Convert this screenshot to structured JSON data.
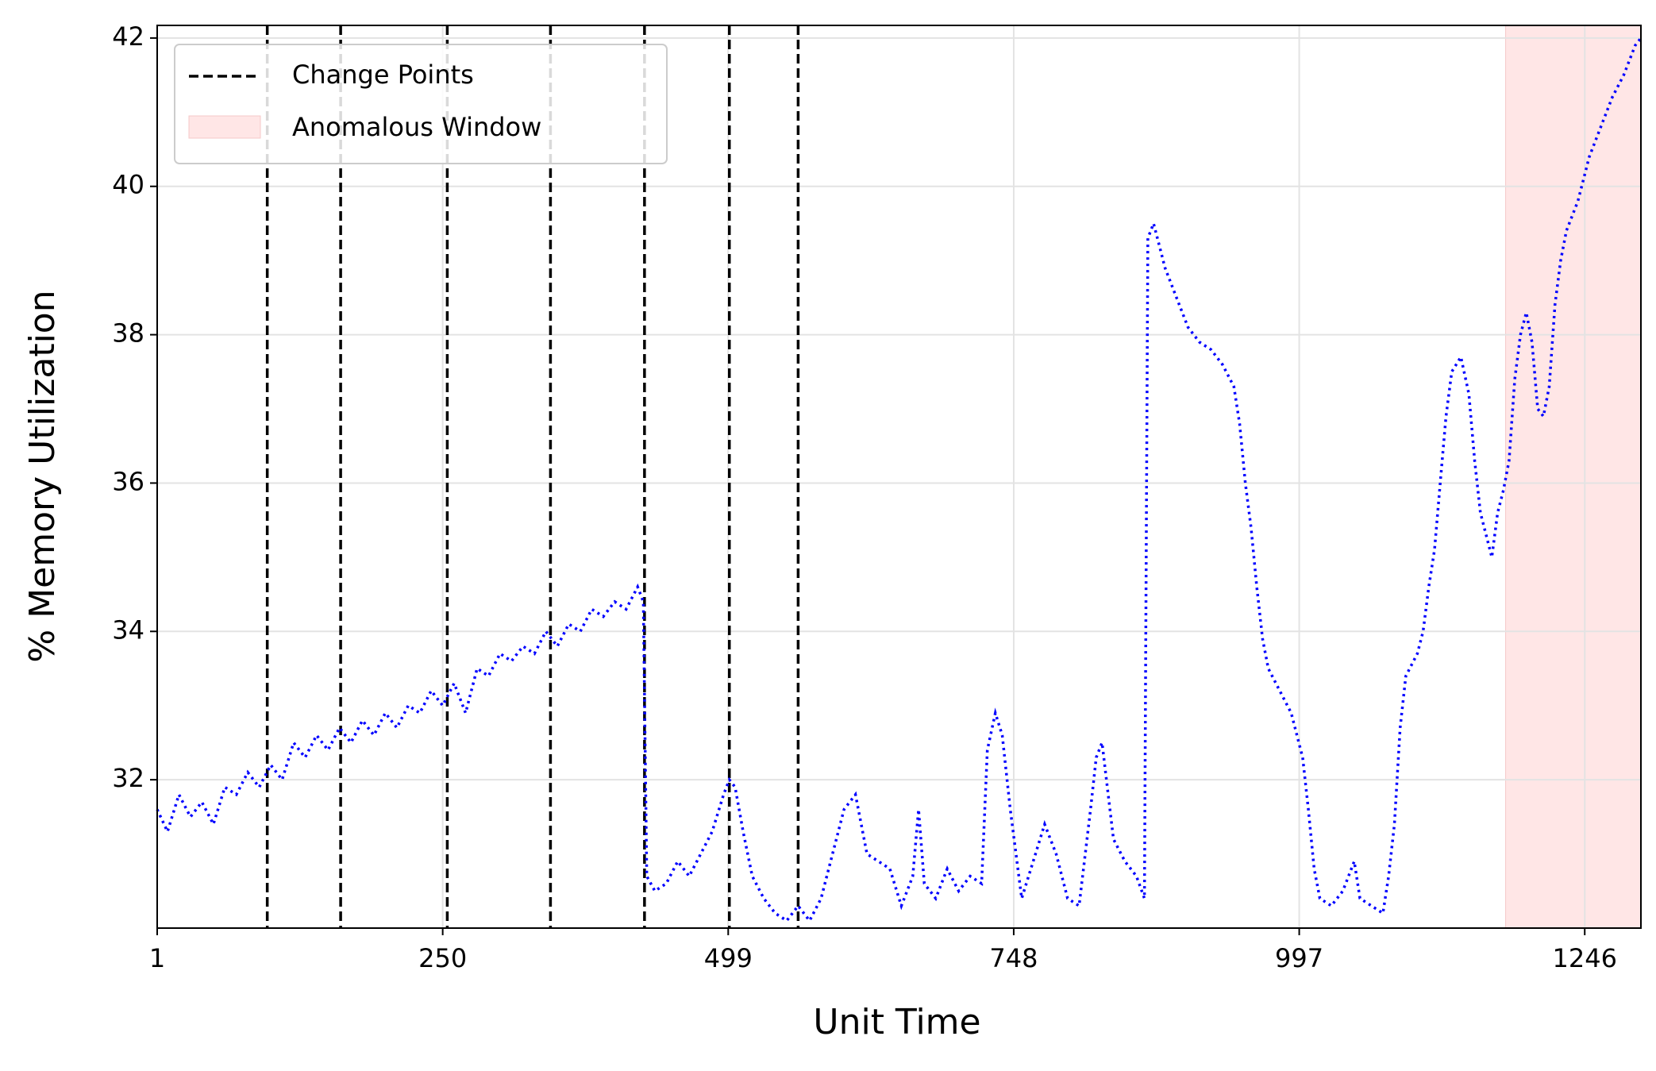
{
  "chart_data": {
    "type": "line",
    "xlabel": "Unit Time",
    "ylabel": "% Memory Utilization",
    "xlim": [
      1,
      1295
    ],
    "ylim": [
      30.0,
      42.17
    ],
    "xticks": [
      1,
      250,
      499,
      748,
      997,
      1246
    ],
    "yticks": [
      32,
      34,
      36,
      38,
      40,
      42
    ],
    "grid": true,
    "legend": "upper left",
    "x": [
      1,
      10,
      20,
      30,
      40,
      50,
      60,
      70,
      80,
      90,
      100,
      110,
      120,
      130,
      140,
      150,
      160,
      170,
      180,
      190,
      200,
      210,
      220,
      230,
      240,
      250,
      260,
      270,
      280,
      290,
      300,
      310,
      320,
      330,
      340,
      350,
      360,
      370,
      380,
      390,
      400,
      410,
      420,
      425,
      428,
      435,
      445,
      455,
      465,
      475,
      485,
      495,
      500,
      505,
      512,
      520,
      530,
      540,
      550,
      560,
      570,
      580,
      590,
      600,
      610,
      620,
      630,
      640,
      650,
      660,
      665,
      670,
      680,
      690,
      700,
      710,
      720,
      725,
      732,
      738,
      745,
      755,
      765,
      775,
      785,
      795,
      805,
      815,
      820,
      825,
      835,
      845,
      855,
      862,
      865,
      870,
      875,
      880,
      890,
      900,
      910,
      920,
      930,
      940,
      945,
      950,
      955,
      960,
      965,
      970,
      980,
      990,
      1000,
      1005,
      1010,
      1015,
      1025,
      1035,
      1045,
      1050,
      1060,
      1070,
      1075,
      1080,
      1085,
      1090,
      1100,
      1105,
      1110,
      1115,
      1120,
      1125,
      1130,
      1138,
      1145,
      1150,
      1155,
      1160,
      1165,
      1170,
      1175,
      1180,
      1185,
      1190,
      1195,
      1200,
      1205,
      1210,
      1215,
      1220,
      1225,
      1230,
      1240,
      1250,
      1260,
      1270,
      1280,
      1290,
      1295
    ],
    "series": [
      {
        "color": "#0000ff",
        "values": [
          31.6,
          31.3,
          31.8,
          31.5,
          31.7,
          31.4,
          31.9,
          31.8,
          32.1,
          31.9,
          32.2,
          32.0,
          32.5,
          32.3,
          32.6,
          32.4,
          32.7,
          32.5,
          32.8,
          32.6,
          32.9,
          32.7,
          33.0,
          32.9,
          33.2,
          33.0,
          33.3,
          32.9,
          33.5,
          33.4,
          33.7,
          33.6,
          33.8,
          33.7,
          34.0,
          33.8,
          34.1,
          34.0,
          34.3,
          34.2,
          34.4,
          34.3,
          34.6,
          34.4,
          30.7,
          30.5,
          30.6,
          30.9,
          30.7,
          31.0,
          31.3,
          31.8,
          32.0,
          31.9,
          31.3,
          30.7,
          30.4,
          30.2,
          30.1,
          30.3,
          30.1,
          30.4,
          31.0,
          31.6,
          31.8,
          31.0,
          30.9,
          30.8,
          30.3,
          30.7,
          31.6,
          30.6,
          30.4,
          30.8,
          30.5,
          30.7,
          30.6,
          32.4,
          32.9,
          32.6,
          31.6,
          30.4,
          30.9,
          31.4,
          31.0,
          30.4,
          30.3,
          31.6,
          32.3,
          32.5,
          31.2,
          30.9,
          30.7,
          30.4,
          39.3,
          39.5,
          39.2,
          38.9,
          38.5,
          38.1,
          37.9,
          37.8,
          37.6,
          37.3,
          36.8,
          36.0,
          35.4,
          34.6,
          33.9,
          33.5,
          33.2,
          32.9,
          32.3,
          31.6,
          30.8,
          30.4,
          30.3,
          30.5,
          30.9,
          30.4,
          30.3,
          30.2,
          30.7,
          31.4,
          32.7,
          33.4,
          33.7,
          34.0,
          34.6,
          35.1,
          36.0,
          36.9,
          37.5,
          37.7,
          37.2,
          36.3,
          35.6,
          35.3,
          35.0,
          35.6,
          35.9,
          36.3,
          37.4,
          38.0,
          38.3,
          37.9,
          37.0,
          36.9,
          37.3,
          38.4,
          39.0,
          39.4,
          39.8,
          40.4,
          40.8,
          41.2,
          41.5,
          41.9,
          42.0
        ]
      }
    ],
    "change_points": {
      "name": "Change Points",
      "color": "#000000",
      "x": [
        97,
        161,
        254,
        344,
        426,
        500,
        560
      ]
    },
    "anomalous_window": {
      "name": "Anomalous Window",
      "color": "#ffe6e6",
      "x": [
        1177,
        1295
      ]
    }
  }
}
